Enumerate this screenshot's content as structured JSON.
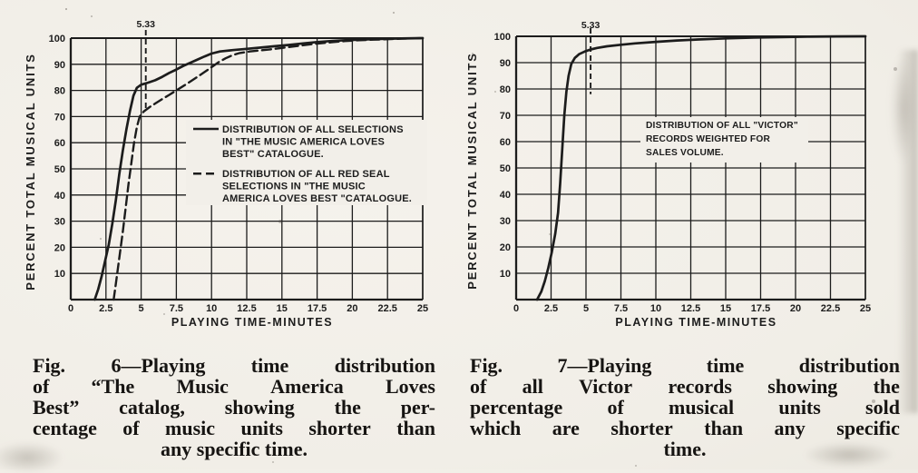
{
  "page": {
    "background_color": "#f2efe9",
    "ink_color": "#1c1c1c"
  },
  "chart_data": [
    {
      "type": "line",
      "figure": "Fig. 6",
      "title": "",
      "xlabel": "PLAYING TIME-MINUTES",
      "ylabel": "PERCENT TOTAL MUSICAL UNITS",
      "xlim": [
        0,
        25
      ],
      "ylim": [
        0,
        100
      ],
      "grid": true,
      "x_ticks": [
        0,
        2.5,
        5,
        7.5,
        10,
        12.5,
        15,
        17.5,
        20,
        22.5,
        25
      ],
      "x_tick_labels": [
        "0",
        "2.5",
        "5",
        "7.5",
        "10",
        "12.5",
        "15",
        "17.5",
        "20",
        "22.5",
        "25"
      ],
      "y_ticks": [
        10,
        20,
        30,
        40,
        50,
        60,
        70,
        80,
        90,
        100
      ],
      "marker_line": {
        "x": 5.33,
        "label": "5.33",
        "y_from": 73,
        "y_to": 100
      },
      "series": [
        {
          "name": "DISTRIBUTION OF ALL SELECTIONS IN \"THE MUSIC AMERICA LOVES BEST\" CATALOGUE.",
          "line_style": "solid",
          "points": [
            [
              1.7,
              0
            ],
            [
              1.95,
              4
            ],
            [
              2.2,
              9
            ],
            [
              2.45,
              15
            ],
            [
              2.7,
              21
            ],
            [
              2.95,
              29
            ],
            [
              3.2,
              38
            ],
            [
              3.45,
              48
            ],
            [
              3.7,
              57
            ],
            [
              3.95,
              65
            ],
            [
              4.2,
              72
            ],
            [
              4.45,
              78
            ],
            [
              4.7,
              81
            ],
            [
              5.0,
              82.2
            ],
            [
              5.5,
              83
            ],
            [
              6.0,
              83.9
            ],
            [
              6.5,
              85.2
            ],
            [
              7.0,
              86.7
            ],
            [
              7.5,
              88
            ],
            [
              8.0,
              89.4
            ],
            [
              8.5,
              90.6
            ],
            [
              9.0,
              91.8
            ],
            [
              9.5,
              93
            ],
            [
              10.0,
              94.1
            ],
            [
              10.6,
              94.9
            ],
            [
              11.5,
              95.4
            ],
            [
              12.5,
              95.9
            ],
            [
              13.5,
              96.4
            ],
            [
              14.5,
              96.9
            ],
            [
              15.5,
              97.4
            ],
            [
              16.5,
              98
            ],
            [
              17.5,
              98.5
            ],
            [
              18.5,
              98.9
            ],
            [
              19.5,
              99.2
            ],
            [
              20.5,
              99.4
            ],
            [
              21.5,
              99.6
            ],
            [
              22.5,
              99.75
            ],
            [
              23.5,
              99.85
            ],
            [
              25,
              100
            ]
          ]
        },
        {
          "name": "DISTRIBUTION OF ALL RED SEAL SELECTIONS IN \"THE MUSIC AMERICA LOVES BEST\" CATALOGUE.",
          "line_style": "long-dash",
          "points": [
            [
              3.05,
              0
            ],
            [
              3.2,
              6
            ],
            [
              3.35,
              12
            ],
            [
              3.5,
              18
            ],
            [
              3.7,
              26
            ],
            [
              3.9,
              35
            ],
            [
              4.1,
              44
            ],
            [
              4.3,
              52
            ],
            [
              4.5,
              60
            ],
            [
              4.7,
              66
            ],
            [
              4.9,
              70
            ],
            [
              5.2,
              72
            ],
            [
              5.6,
              73.6
            ],
            [
              6.0,
              75
            ],
            [
              6.5,
              76.7
            ],
            [
              7.0,
              78.3
            ],
            [
              7.5,
              80
            ],
            [
              8.0,
              81.7
            ],
            [
              8.5,
              83.4
            ],
            [
              9.0,
              85.2
            ],
            [
              9.5,
              87
            ],
            [
              10.0,
              88.9
            ],
            [
              10.5,
              90.8
            ],
            [
              11.0,
              92.3
            ],
            [
              11.5,
              93.5
            ],
            [
              12.0,
              94.3
            ],
            [
              12.7,
              94.9
            ],
            [
              13.5,
              95.3
            ],
            [
              14.5,
              95.9
            ],
            [
              15.5,
              96.6
            ],
            [
              16.5,
              97.3
            ],
            [
              17.5,
              97.9
            ],
            [
              18.5,
              98.4
            ],
            [
              19.5,
              98.9
            ],
            [
              20.5,
              99.2
            ],
            [
              21.5,
              99.4
            ],
            [
              22.5,
              99.6
            ],
            [
              23.5,
              99.8
            ],
            [
              25,
              100
            ]
          ]
        }
      ],
      "legend": {
        "position": "inside-middle-right",
        "entries": [
          {
            "marker": "solid",
            "lines": [
              "DISTRIBUTION OF ALL SELECTIONS",
              "IN \"THE MUSIC AMERICA LOVES",
              "BEST\" CATALOGUE."
            ]
          },
          {
            "marker": "long-dash",
            "lines": [
              "DISTRIBUTION OF ALL RED SEAL",
              "SELECTIONS IN \"THE MUSIC",
              "AMERICA LOVES BEST \"CATALOGUE."
            ]
          }
        ]
      }
    },
    {
      "type": "line",
      "figure": "Fig. 7",
      "title": "",
      "xlabel": "PLAYING TIME-MINUTES",
      "ylabel": "PERCENT TOTAL MUSICAL UNITS",
      "xlim": [
        0,
        25
      ],
      "ylim": [
        0,
        100
      ],
      "grid": true,
      "x_ticks": [
        0,
        2.5,
        5,
        7.5,
        10,
        12.5,
        15,
        17.5,
        20,
        22.5,
        25
      ],
      "x_tick_labels": [
        "0",
        "2.5",
        "5",
        "7.5",
        "10",
        "12.5",
        "15",
        "17.5",
        "20",
        "22.5",
        "25"
      ],
      "y_ticks": [
        10,
        20,
        30,
        40,
        50,
        60,
        70,
        80,
        90,
        100
      ],
      "marker_line": {
        "x": 5.33,
        "label": "5.33",
        "y_from": 78,
        "y_to": 100
      },
      "series": [
        {
          "name": "DISTRIBUTION OF ALL \"VICTOR\" RECORDS WEIGHTED FOR SALES VOLUME.",
          "line_style": "solid",
          "points": [
            [
              1.5,
              0
            ],
            [
              1.8,
              3
            ],
            [
              2.05,
              7
            ],
            [
              2.3,
              12
            ],
            [
              2.55,
              18
            ],
            [
              2.8,
              25
            ],
            [
              3.0,
              33
            ],
            [
              3.15,
              44
            ],
            [
              3.3,
              57
            ],
            [
              3.45,
              70
            ],
            [
              3.6,
              79
            ],
            [
              3.75,
              85
            ],
            [
              3.95,
              89.5
            ],
            [
              4.2,
              91.8
            ],
            [
              4.5,
              93.2
            ],
            [
              4.9,
              94.2
            ],
            [
              5.33,
              95
            ],
            [
              5.8,
              95.6
            ],
            [
              6.5,
              96.2
            ],
            [
              7.5,
              96.8
            ],
            [
              8.5,
              97.3
            ],
            [
              10,
              97.9
            ],
            [
              11.5,
              98.4
            ],
            [
              13,
              98.8
            ],
            [
              15,
              99.2
            ],
            [
              17,
              99.5
            ],
            [
              19,
              99.7
            ],
            [
              21,
              99.85
            ],
            [
              23,
              99.95
            ],
            [
              25,
              100
            ]
          ]
        }
      ],
      "annotation": {
        "lines": [
          "DISTRIBUTION OF ALL \"VICTOR\"",
          "RECORDS WEIGHTED FOR",
          "SALES VOLUME."
        ]
      }
    }
  ],
  "captions": [
    {
      "figure": "Fig. 6",
      "lines": [
        "Fig. 6—Playing time distribution",
        "of “The Music America Loves",
        "Best” catalog, showing the per-",
        "centage of music units shorter than",
        "any specific time."
      ]
    },
    {
      "figure": "Fig. 7",
      "lines": [
        "Fig. 7—Playing time distribution",
        "of all Victor records showing the",
        "percentage of musical units sold",
        "which are shorter than any specific",
        "time."
      ]
    }
  ]
}
